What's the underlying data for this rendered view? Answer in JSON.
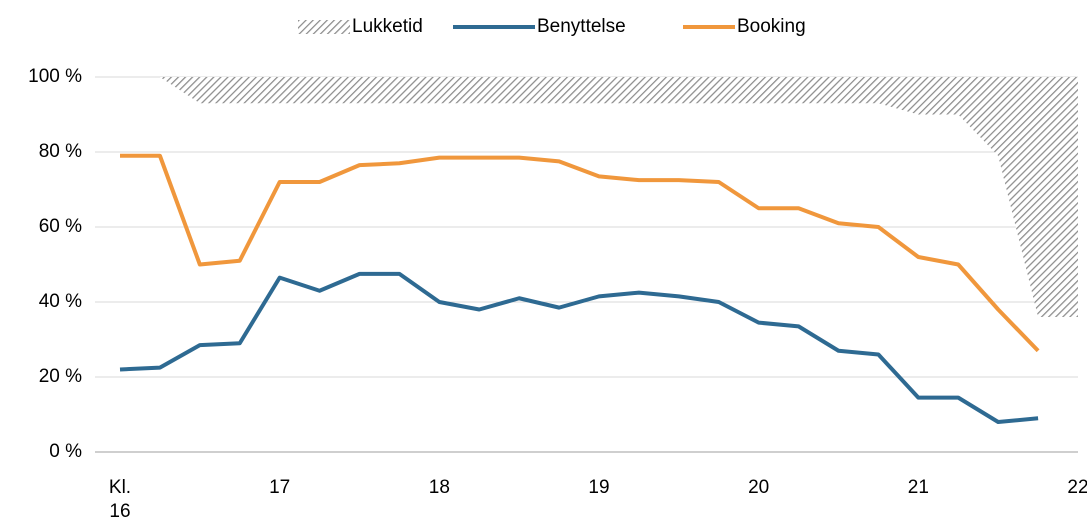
{
  "chart_data": {
    "type": "line",
    "xticks": [
      {
        "value": 16,
        "label": "Kl. 16"
      },
      17,
      18,
      19,
      20,
      21,
      22
    ],
    "xlim": [
      16,
      22
    ],
    "ylim": [
      0,
      100
    ],
    "yticks": [
      {
        "value": 0,
        "label": "0 %"
      },
      {
        "value": 20,
        "label": "20 %"
      },
      {
        "value": 40,
        "label": "40 %"
      },
      {
        "value": 60,
        "label": "60 %"
      },
      {
        "value": 80,
        "label": "80 %"
      },
      {
        "value": 100,
        "label": "100 %"
      }
    ],
    "grid": true,
    "legend": "top",
    "series": [
      {
        "name": "Lukketid",
        "kind": "area",
        "color": "#8c8c8c",
        "x": [
          16,
          16.25,
          16.5,
          16.75,
          17,
          17.25,
          17.5,
          17.75,
          18,
          18.25,
          18.5,
          18.75,
          19,
          19.25,
          19.5,
          19.75,
          20,
          20.25,
          20.5,
          20.75,
          21,
          21.25,
          21.5,
          21.75,
          22
        ],
        "values": [
          100,
          100,
          93,
          93,
          93,
          93,
          93,
          93,
          93,
          93,
          93,
          93,
          93,
          93,
          93,
          93,
          93,
          93,
          93,
          93,
          90,
          90,
          79,
          36,
          36
        ]
      },
      {
        "name": "Benyttelse",
        "kind": "line",
        "color": "#2e6a92",
        "x": [
          16,
          16.25,
          16.5,
          16.75,
          17,
          17.25,
          17.5,
          17.75,
          18,
          18.25,
          18.5,
          18.75,
          19,
          19.25,
          19.5,
          19.75,
          20,
          20.25,
          20.5,
          20.75,
          21,
          21.25,
          21.5,
          21.75
        ],
        "values": [
          22,
          22.5,
          28.5,
          29,
          46.5,
          43,
          47.5,
          47.5,
          40,
          38,
          41,
          38.5,
          41.5,
          42.5,
          41.5,
          40,
          34.5,
          33.5,
          27,
          26,
          14.5,
          14.5,
          8,
          9
        ]
      },
      {
        "name": "Booking",
        "kind": "line",
        "color": "#f0973c",
        "x": [
          16,
          16.25,
          16.5,
          16.75,
          17,
          17.25,
          17.5,
          17.75,
          18,
          18.25,
          18.5,
          18.75,
          19,
          19.25,
          19.5,
          19.75,
          20,
          20.25,
          20.5,
          20.75,
          21,
          21.25,
          21.5,
          21.75
        ],
        "values": [
          79,
          79,
          50,
          51,
          72,
          72,
          76.5,
          77,
          78.5,
          78.5,
          78.5,
          77.5,
          73.5,
          72.5,
          72.5,
          72,
          65,
          65,
          61,
          60,
          52,
          50,
          38,
          27
        ]
      }
    ]
  }
}
